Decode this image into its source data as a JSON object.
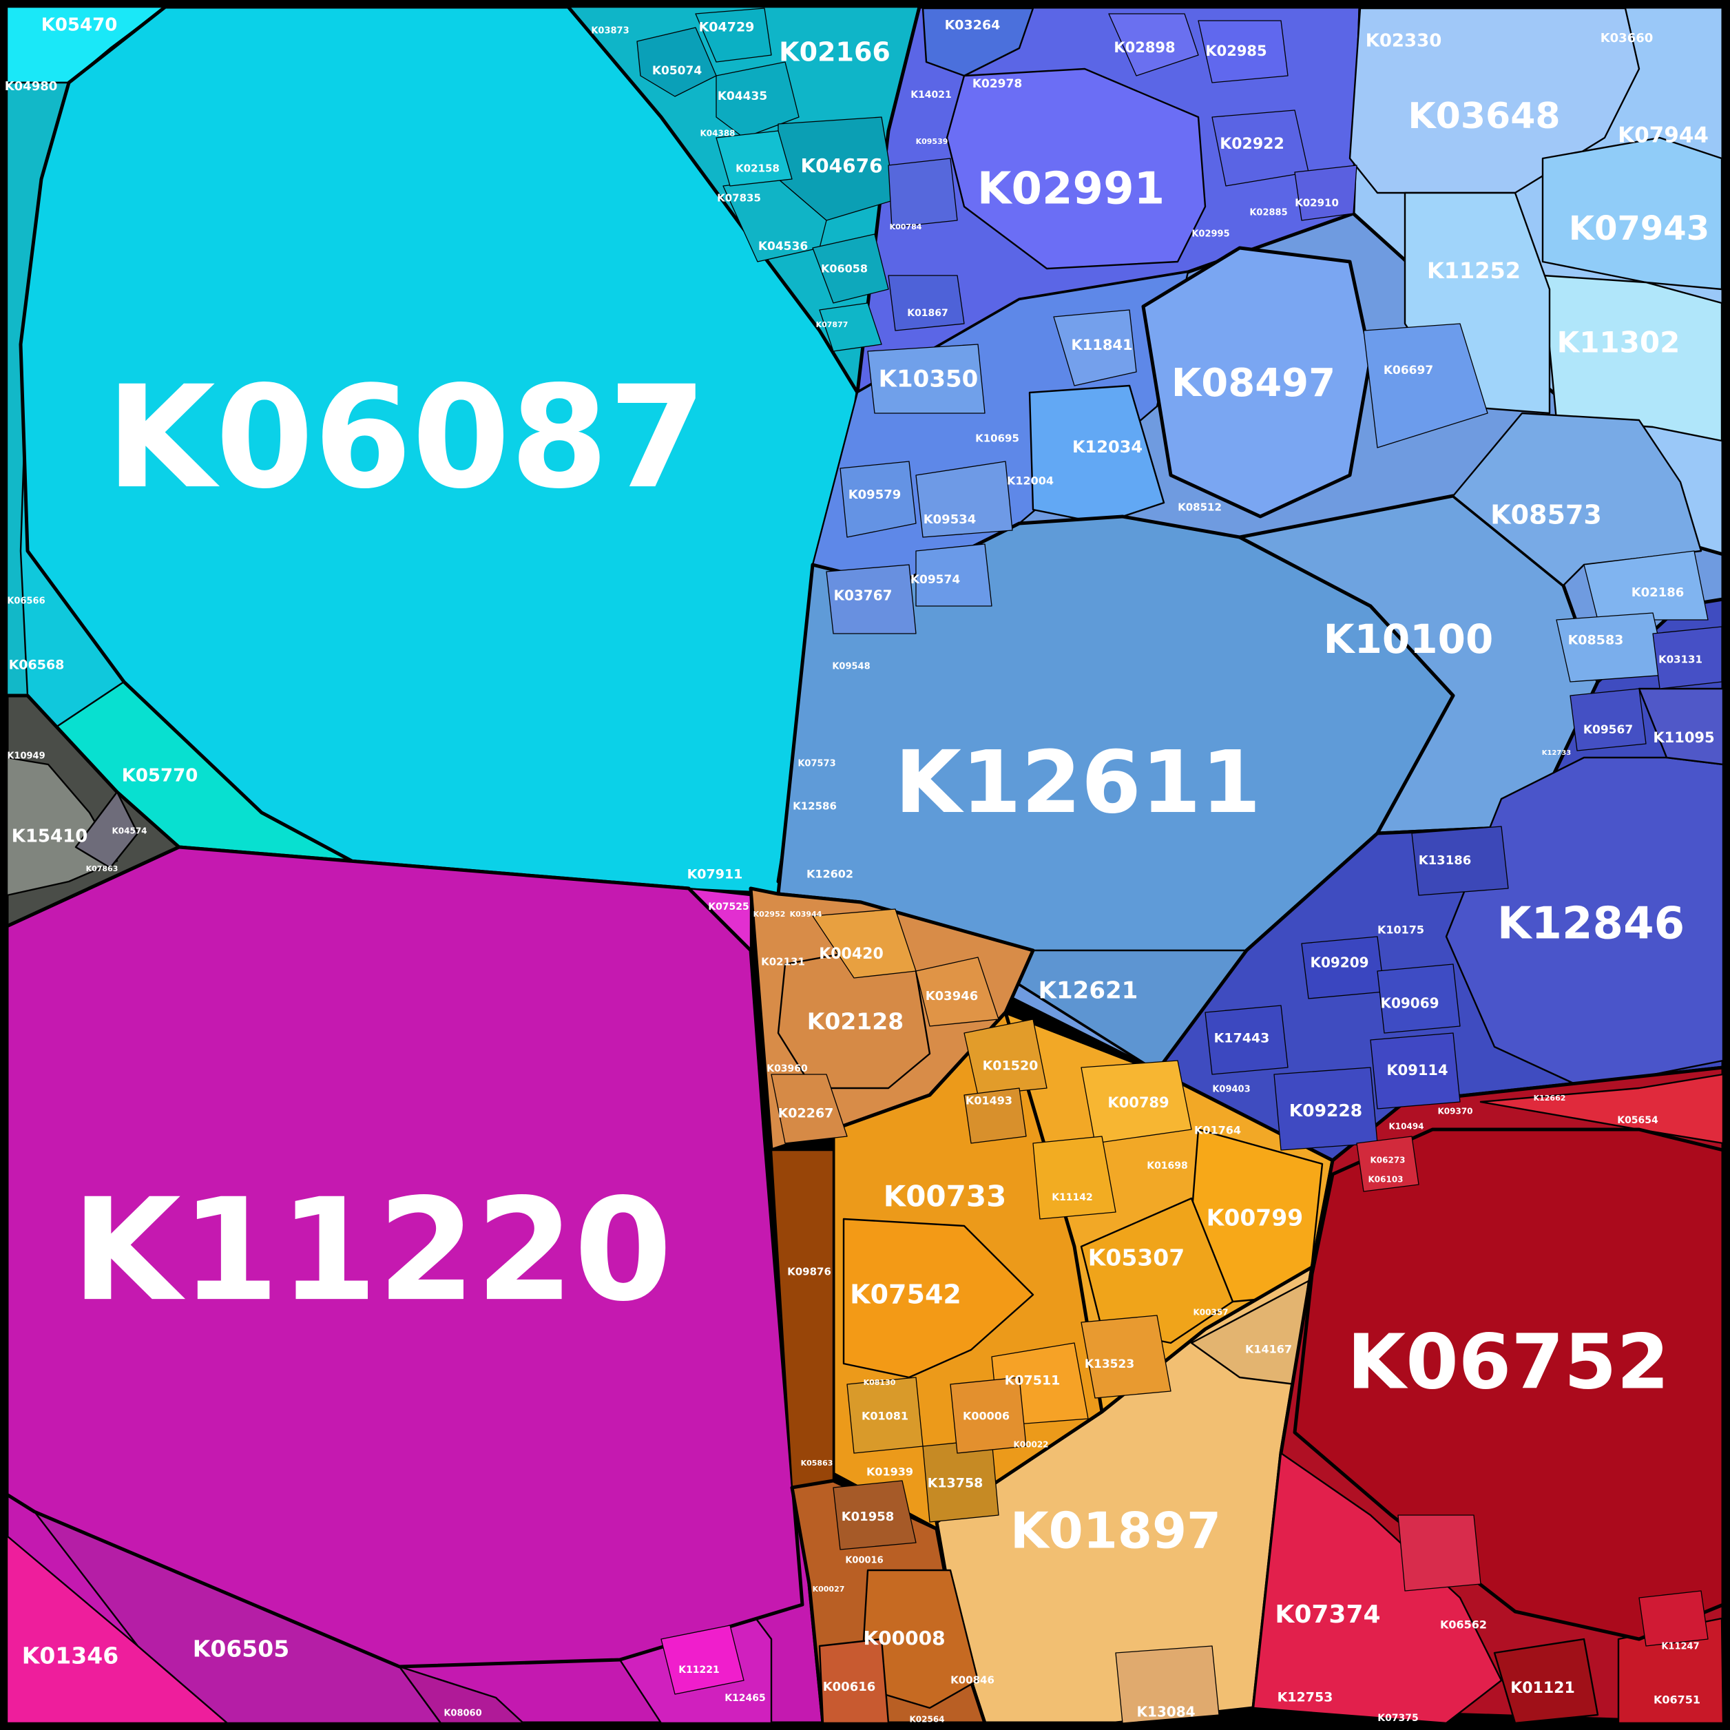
{
  "labels": {
    "k06087": "K06087",
    "k11220": "K11220",
    "k12611": "K12611",
    "k06752": "K06752",
    "k02991": "K02991",
    "k12846": "K12846",
    "k10100": "K10100",
    "k08497": "K08497",
    "k01897": "K01897",
    "k03648": "K03648",
    "k07943": "K07943",
    "k11302": "K11302",
    "k08573": "K08573",
    "k00733": "K00733",
    "k07542": "K07542",
    "k05307": "K05307",
    "k00799": "K00799",
    "k02128": "K02128",
    "k02166": "K02166",
    "k04676": "K04676",
    "k07374": "K07374",
    "k00008": "K00008",
    "k12621": "K12621",
    "k10350": "K10350",
    "k11252": "K11252",
    "k07944": "K07944",
    "k02330": "K02330",
    "k03660": "K03660",
    "k05470": "K05470",
    "k04980": "K04980",
    "k05770": "K05770",
    "k15410": "K15410",
    "k10949": "K10949",
    "k04574": "K04574",
    "k07863": "K07863",
    "k01346": "K01346",
    "k06505": "K06505",
    "k08060": "K08060",
    "k11221": "K11221",
    "k12465": "K12465",
    "k07525": "K07525",
    "k07911": "K07911",
    "k03264": "K03264",
    "k02978": "K02978",
    "k02898": "K02898",
    "k02985": "K02985",
    "k02922": "K02922",
    "k02885": "K02885",
    "k02910": "K02910",
    "k02995": "K02995",
    "k14021": "K14021",
    "k09539": "K09539",
    "k00784": "K00784",
    "k01867": "K01867",
    "k11841": "K11841",
    "k12034": "K12034",
    "k12004": "K12004",
    "k10695": "K10695",
    "k09579": "K09579",
    "k09534": "K09534",
    "k09574": "K09574",
    "k03767": "K03767",
    "k09548": "K09548",
    "k07573": "K07573",
    "k12586": "K12586",
    "k12602": "K12602",
    "k06697": "K06697",
    "k08512": "K08512",
    "k02186": "K02186",
    "k08583": "K08583",
    "k03131": "K03131",
    "k09567": "K09567",
    "k11095": "K11095",
    "k13186": "K13186",
    "k10175": "K10175",
    "k09209": "K09209",
    "k09069": "K09069",
    "k17443": "K17443",
    "k09114": "K09114",
    "k09228": "K09228",
    "k09403": "K09403",
    "k10494": "K10494",
    "k09370": "K09370",
    "k05654": "K05654",
    "k06103": "K06103",
    "k06273": "K06273",
    "k06562": "K06562",
    "k01121": "K01121",
    "k12753": "K12753",
    "k07375": "K07375",
    "k06751": "K06751",
    "k11247": "K11247",
    "k13084": "K13084",
    "k00616": "K00616",
    "k00846": "K00846",
    "k01958": "K01958",
    "k00016": "K00016",
    "k00027": "K00027",
    "k02564": "K02564",
    "k09876": "K09876",
    "k00420": "K00420",
    "k03946": "K03946",
    "k02131": "K02131",
    "k03960": "K03960",
    "k02267": "K02267",
    "k01520": "K01520",
    "k01493": "K01493",
    "k00789": "K00789",
    "k01764": "K01764",
    "k01698": "K01698",
    "k11142": "K11142",
    "k14167": "K14167",
    "k00357": "K00357",
    "k13523": "K13523",
    "k07511": "K07511",
    "k00006": "K00006",
    "k00022": "K00022",
    "k01081": "K01081",
    "k01939": "K01939",
    "k13758": "K13758",
    "k08130": "K08130",
    "k05863": "K05863",
    "k04729": "K04729",
    "k05074": "K05074",
    "k04435": "K04435",
    "k04388": "K04388",
    "k02158": "K02158",
    "k07835": "K07835",
    "k04536": "K04536",
    "k06058": "K06058",
    "k07877": "K07877",
    "k03873": "K03873",
    "k06566": "K06566",
    "k06568": "K06568",
    "k02952": "K02952",
    "k03944": "K03944",
    "k12662": "K12662",
    "k12733": "K12733"
  }
}
